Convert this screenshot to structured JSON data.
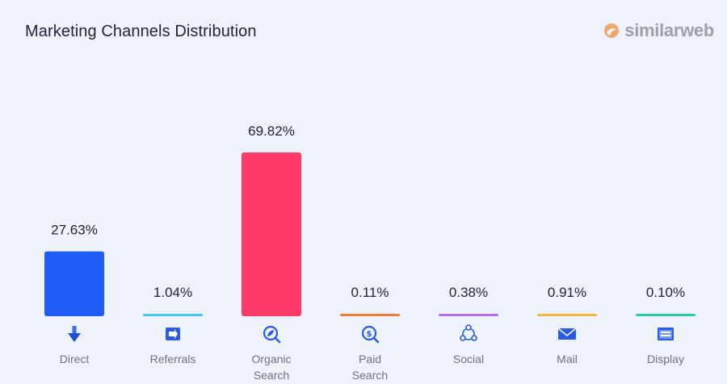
{
  "header": {
    "title": "Marketing Channels Distribution",
    "brand": "similarweb"
  },
  "colors": {
    "background": "#eef2fb",
    "brand_orange": "#f0a86c",
    "brand_text": "#9aa0ae"
  },
  "chart_data": {
    "type": "bar",
    "title": "Marketing Channels Distribution",
    "categories": [
      {
        "label": "Direct",
        "icon": "arrow-down-icon"
      },
      {
        "label": "Referrals",
        "icon": "referral-icon"
      },
      {
        "label": "Organic Search",
        "icon": "organic-search-icon"
      },
      {
        "label": "Paid Search",
        "icon": "paid-search-icon"
      },
      {
        "label": "Social",
        "icon": "social-icon"
      },
      {
        "label": "Mail",
        "icon": "mail-icon"
      },
      {
        "label": "Display",
        "icon": "display-icon"
      }
    ],
    "values": [
      27.63,
      1.04,
      69.82,
      0.11,
      0.38,
      0.91,
      0.1
    ],
    "value_labels": [
      "27.63%",
      "1.04%",
      "69.82%",
      "0.11%",
      "0.38%",
      "0.91%",
      "0.10%"
    ],
    "colors": [
      "#1e5cf5",
      "#45c8ee",
      "#ff3a6a",
      "#f47b33",
      "#b26df0",
      "#f3b736",
      "#2ec9a5"
    ],
    "unit": "%",
    "ylim": [
      0,
      100
    ],
    "grid": false,
    "legend": "none"
  }
}
